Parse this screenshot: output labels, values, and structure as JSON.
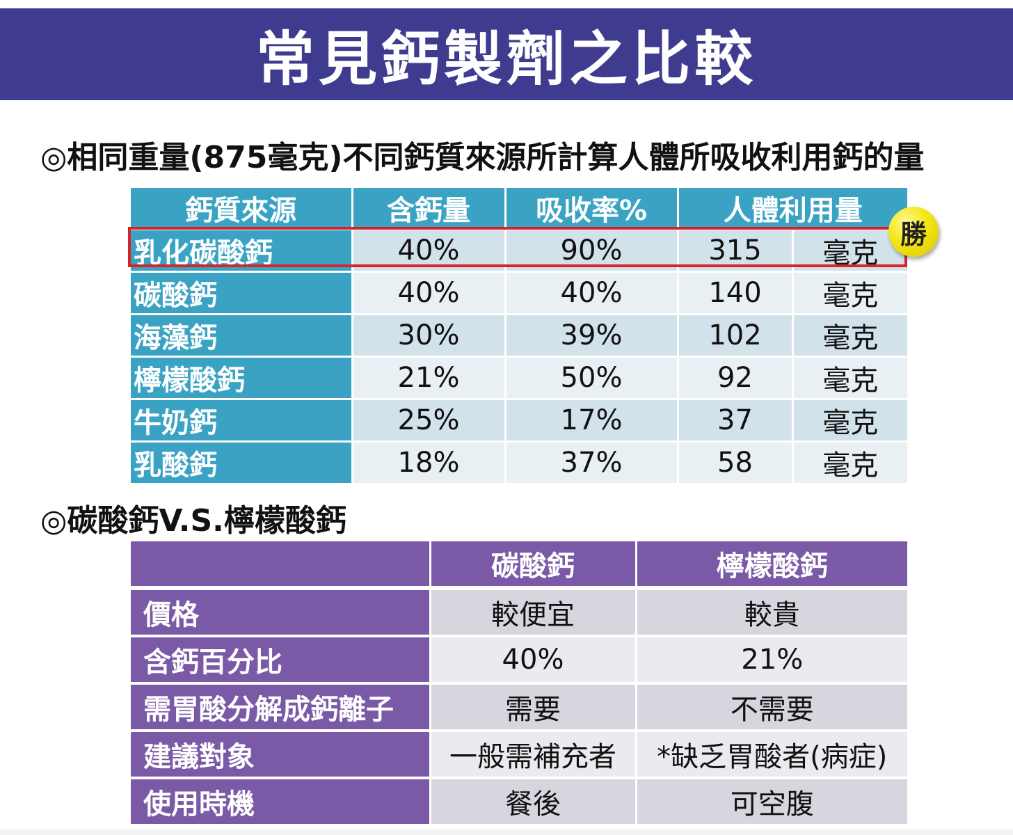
{
  "title": "常見鈣製劑之比較",
  "section1": {
    "title": "◎相同重量(875毫克)不同鈣質來源所計算人體所吸收利用鈣的量",
    "headers": [
      "鈣質來源",
      "含鈣量",
      "吸收率%",
      "人體利用量"
    ],
    "rows": [
      {
        "source": "乳化碳酸鈣",
        "calcium": "40%",
        "absorption": "90%",
        "amount": "315",
        "unit": "毫克"
      },
      {
        "source": "碳酸鈣",
        "calcium": "40%",
        "absorption": "40%",
        "amount": "140",
        "unit": "毫克"
      },
      {
        "source": "海藻鈣",
        "calcium": "30%",
        "absorption": "39%",
        "amount": "102",
        "unit": "毫克"
      },
      {
        "source": "檸檬酸鈣",
        "calcium": "21%",
        "absorption": "50%",
        "amount": "92",
        "unit": "毫克"
      },
      {
        "source": "牛奶鈣",
        "calcium": "25%",
        "absorption": "17%",
        "amount": "37",
        "unit": "毫克"
      },
      {
        "source": "乳酸鈣",
        "calcium": "18%",
        "absorption": "37%",
        "amount": "58",
        "unit": "毫克"
      }
    ],
    "badge": "勝"
  },
  "section2": {
    "title": "◎碳酸鈣V.S.檸檬酸鈣",
    "headers": [
      "",
      "碳酸鈣",
      "檸檬酸鈣"
    ],
    "rows": [
      {
        "label": "價格",
        "carbonate": "較便宜",
        "citrate": "較貴"
      },
      {
        "label": "含鈣百分比",
        "carbonate": "40%",
        "citrate": "21%"
      },
      {
        "label": "需胃酸分解成鈣離子",
        "carbonate": "需要",
        "citrate": "不需要"
      },
      {
        "label": "建議對象",
        "carbonate": "一般需補充者",
        "citrate": "*缺乏胃酸者(病症)"
      },
      {
        "label": "使用時機",
        "carbonate": "餐後",
        "citrate": "可空腹"
      }
    ]
  },
  "colors": {
    "banner": "#3f3c8f",
    "table1_header": "#3aa3c4",
    "table2_header": "#7a5aa6",
    "highlight": "#d8232a",
    "badge": "#f3e612"
  }
}
